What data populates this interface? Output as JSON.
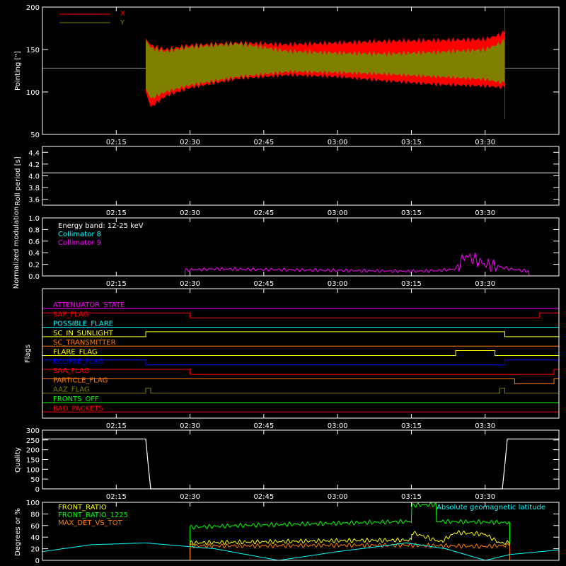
{
  "time_ticks": [
    "02:15",
    "02:30",
    "02:45",
    "03:00",
    "03:15",
    "03:30"
  ],
  "colors": {
    "axis": "#ffffff",
    "red": "#ff0000",
    "olive": "#7f7f00",
    "cyan": "#00ffff",
    "magenta": "#ff00ff",
    "yellow": "#ffff00",
    "green": "#00ff00",
    "orange": "#ff7f00",
    "blue": "#0000ff",
    "grey": "#7f7f7f"
  },
  "chart_data": [
    {
      "id": "pointing",
      "type": "area",
      "ylabel": "Pointing [\"]",
      "ylim": [
        50,
        200
      ],
      "yticks": [
        50,
        100,
        150,
        200
      ],
      "legend": [
        {
          "label": "X",
          "color": "#ff0000"
        },
        {
          "label": "Y",
          "color": "#7f7f00"
        }
      ],
      "reference_line": 128,
      "series": [
        {
          "name": "X",
          "color": "#ff0000",
          "x": [
            "02:21",
            "02:22",
            "02:25",
            "02:30",
            "02:40",
            "02:50",
            "03:00",
            "03:10",
            "03:20",
            "03:30",
            "03:34"
          ],
          "upper": [
            163,
            155,
            150,
            155,
            158,
            156,
            158,
            160,
            161,
            162,
            170
          ],
          "lower": [
            100,
            82,
            95,
            105,
            116,
            120,
            118,
            113,
            109,
            107,
            105
          ]
        },
        {
          "name": "Y",
          "color": "#7f7f00",
          "x": [
            "02:21",
            "02:22",
            "02:25",
            "02:30",
            "02:40",
            "02:50",
            "03:00",
            "03:10",
            "03:20",
            "03:30",
            "03:34"
          ],
          "upper": [
            162,
            152,
            148,
            153,
            157,
            148,
            146,
            145,
            147,
            150,
            160
          ],
          "lower": [
            104,
            92,
            100,
            108,
            118,
            124,
            123,
            121,
            118,
            115,
            110
          ]
        }
      ]
    },
    {
      "id": "roll",
      "type": "line",
      "ylabel": "Roll period [s]",
      "ylim": [
        3.5,
        4.5
      ],
      "yticks": [
        3.6,
        3.8,
        4.0,
        4.2,
        4.4
      ],
      "series": [
        {
          "name": "",
          "color": "#ffffff",
          "x": [
            "02:00",
            "03:45"
          ],
          "y": [
            4.05,
            4.05
          ]
        }
      ]
    },
    {
      "id": "modulation",
      "type": "line",
      "ylabel": "Normalized modulation",
      "ylim": [
        0,
        1
      ],
      "yticks": [
        0.0,
        0.2,
        0.4,
        0.6,
        0.8,
        1.0
      ],
      "legend_title": "Energy band: 12-25 keV",
      "legend": [
        {
          "label": "Collimator 8",
          "color": "#00ffff"
        },
        {
          "label": "Collimator 9",
          "color": "#ff00ff"
        }
      ],
      "series": [
        {
          "name": "Collimator 9",
          "color": "#ff00ff",
          "x": [
            "02:29",
            "02:35",
            "02:45",
            "02:55",
            "03:05",
            "03:15",
            "03:20",
            "03:24",
            "03:26",
            "03:28",
            "03:30",
            "03:35",
            "03:39"
          ],
          "y": [
            0.1,
            0.12,
            0.11,
            0.1,
            0.09,
            0.08,
            0.09,
            0.12,
            0.35,
            0.28,
            0.2,
            0.12,
            0.08
          ]
        }
      ]
    },
    {
      "id": "flags",
      "type": "line",
      "ylabel": "Flags",
      "flags": [
        {
          "label": "ATTENUATOR_STATE",
          "color": "#ff00ff",
          "on": []
        },
        {
          "label": "SAP_FLAG",
          "color": "#ff0000",
          "on": [
            [
              "02:00",
              "02:30"
            ],
            [
              "03:41",
              "03:45"
            ]
          ]
        },
        {
          "label": "POSSIBLE_FLARE",
          "color": "#00ffff",
          "on": []
        },
        {
          "label": "SC_IN_SUNLIGHT",
          "color": "#ffff00",
          "on": [
            [
              "02:21",
              "03:34"
            ]
          ]
        },
        {
          "label": "SC_TRANSMITTER",
          "color": "#ff7f00",
          "on": []
        },
        {
          "label": "FLARE_FLAG",
          "color": "#ffff00",
          "on": [
            [
              "03:24",
              "03:32"
            ]
          ]
        },
        {
          "label": "ECLIPSE_FLAG",
          "color": "#0000ff",
          "on": [
            [
              "02:00",
              "02:21"
            ],
            [
              "03:34",
              "03:45"
            ]
          ]
        },
        {
          "label": "SAA_FLAG",
          "color": "#ff0000",
          "on": [
            [
              "02:00",
              "02:30"
            ],
            [
              "03:44",
              "03:45"
            ]
          ]
        },
        {
          "label": "PARTICLE_FLAG",
          "color": "#ff7f00",
          "on": [
            [
              "02:00",
              "03:36"
            ],
            [
              "03:44",
              "03:45"
            ]
          ]
        },
        {
          "label": "AAZ_FLAG",
          "color": "#7f7f00",
          "on": [
            [
              "02:21",
              "02:22"
            ],
            [
              "03:33",
              "03:34"
            ]
          ]
        },
        {
          "label": "FRONTS_OFF",
          "color": "#00ff00",
          "on": []
        },
        {
          "label": "BAD_PACKETS",
          "color": "#ff0000",
          "on": []
        }
      ]
    },
    {
      "id": "quality",
      "type": "line",
      "ylabel": "Quality",
      "ylim": [
        0,
        300
      ],
      "yticks": [
        0,
        50,
        100,
        150,
        200,
        250,
        300
      ],
      "series": [
        {
          "name": "",
          "color": "#ffffff",
          "x": [
            "02:00",
            "02:21",
            "02:21.5",
            "02:22",
            "03:33.5",
            "03:34",
            "03:34.5",
            "03:45"
          ],
          "y": [
            255,
            255,
            120,
            0,
            0,
            120,
            255,
            255
          ]
        }
      ]
    },
    {
      "id": "front",
      "type": "line",
      "ylabel": "Degrees or %",
      "ylim": [
        0,
        100
      ],
      "yticks": [
        0,
        20,
        40,
        60,
        80,
        100
      ],
      "legend": [
        {
          "label": "FRONT_RATIO",
          "color": "#ffff00"
        },
        {
          "label": "FRONT_RATIO_1225",
          "color": "#00ff00"
        },
        {
          "label": "MAX_DET_VS_TOT",
          "color": "#ff7f00"
        }
      ],
      "annotation": "Absolute geomagnetic latitude",
      "series": [
        {
          "name": "FRONT_RATIO_1225",
          "color": "#00ff00",
          "x": [
            "02:30",
            "02:40",
            "02:50",
            "03:00",
            "03:10",
            "03:15",
            "03:15.1",
            "03:20",
            "03:20.1",
            "03:30",
            "03:35"
          ],
          "y": [
            57,
            60,
            62,
            64,
            66,
            67,
            95,
            96,
            67,
            66,
            65
          ]
        },
        {
          "name": "FRONT_RATIO",
          "color": "#ffff00",
          "x": [
            "02:30",
            "02:45",
            "03:00",
            "03:15",
            "03:15.1",
            "03:21",
            "03:24",
            "03:30",
            "03:33",
            "03:35"
          ],
          "y": [
            30,
            32,
            34,
            35,
            48,
            32,
            48,
            45,
            30,
            30
          ]
        },
        {
          "name": "MAX_DET_VS_TOT",
          "color": "#ff7f00",
          "x": [
            "02:30",
            "02:45",
            "03:00",
            "03:15",
            "03:30",
            "03:35"
          ],
          "y": [
            25,
            25,
            26,
            26,
            24,
            26
          ]
        },
        {
          "name": "Absolute geomagnetic latitude",
          "color": "#00ffff",
          "x": [
            "02:00",
            "02:10",
            "02:21",
            "02:35",
            "02:48",
            "03:00",
            "03:14",
            "03:22",
            "03:30",
            "03:35",
            "03:45"
          ],
          "y": [
            15,
            27,
            30,
            20,
            0,
            15,
            30,
            20,
            0,
            10,
            18
          ]
        }
      ]
    }
  ]
}
